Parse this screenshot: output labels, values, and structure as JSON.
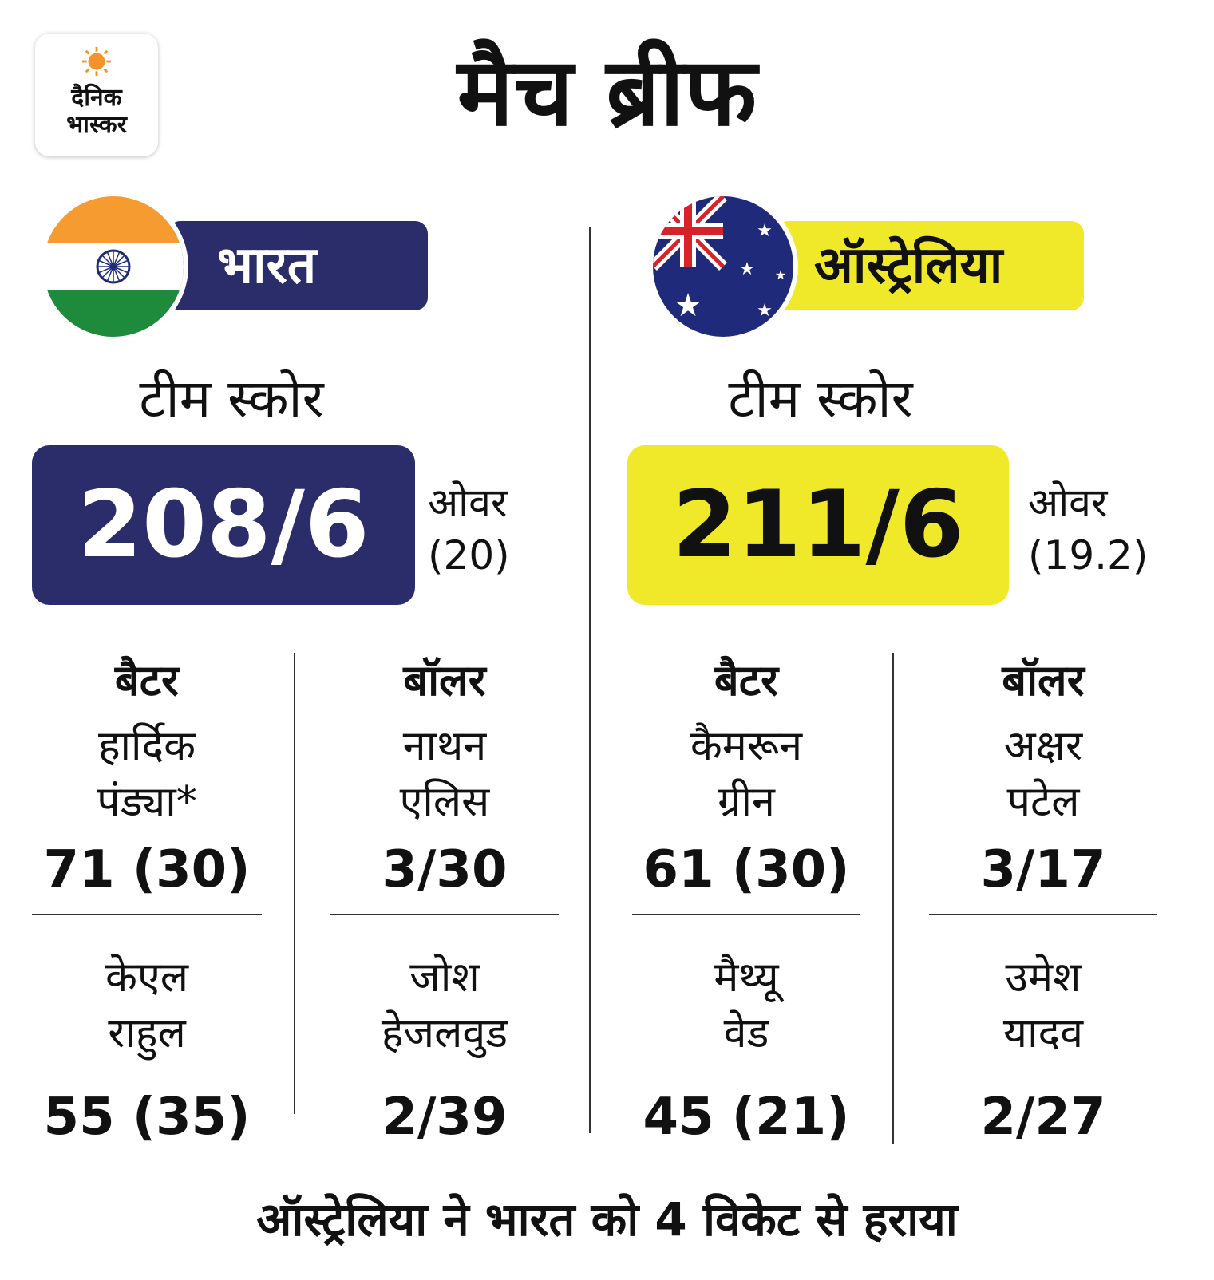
{
  "brand": {
    "line1": "दैनिक",
    "line2": "भास्कर"
  },
  "title": "मैच ब्रीफ",
  "colors": {
    "india_navy": "#2b2d6b",
    "aus_yellow": "#f0e92a",
    "saffron": "#f59b30",
    "green": "#1e8a3c",
    "aus_blue": "#1f2b7a",
    "aus_red": "#d8222a"
  },
  "teams": [
    {
      "name": "भारत",
      "score_label": "टीम स्कोर",
      "score": "208/6",
      "overs_label": "ओवर",
      "overs": "(20)",
      "batters_heading": "बैटर",
      "bowlers_heading": "बॉलर",
      "batters": [
        {
          "name1": "हार्दिक",
          "name2": "पंड्या*",
          "stat": "71 (30)"
        },
        {
          "name1": "केएल",
          "name2": "राहुल",
          "stat": "55 (35)"
        }
      ],
      "bowlers": [
        {
          "name1": "नाथन",
          "name2": "एलिस",
          "stat": "3/30"
        },
        {
          "name1": "जोश",
          "name2": "हेजलवुड",
          "stat": "2/39"
        }
      ]
    },
    {
      "name": "ऑस्ट्रेलिया",
      "score_label": "टीम स्कोर",
      "score": "211/6",
      "overs_label": "ओवर",
      "overs": "(19.2)",
      "batters_heading": "बैटर",
      "bowlers_heading": "बॉलर",
      "batters": [
        {
          "name1": "कैमरून",
          "name2": "ग्रीन",
          "stat": "61 (30)"
        },
        {
          "name1": "मैथ्यू",
          "name2": "वेड",
          "stat": "45 (21)"
        }
      ],
      "bowlers": [
        {
          "name1": "अक्षर",
          "name2": "पटेल",
          "stat": "3/17"
        },
        {
          "name1": "उमेश",
          "name2": "यादव",
          "stat": "2/27"
        }
      ]
    }
  ],
  "result": "ऑस्ट्रेलिया ने भारत को 4 विकेट से हराया"
}
